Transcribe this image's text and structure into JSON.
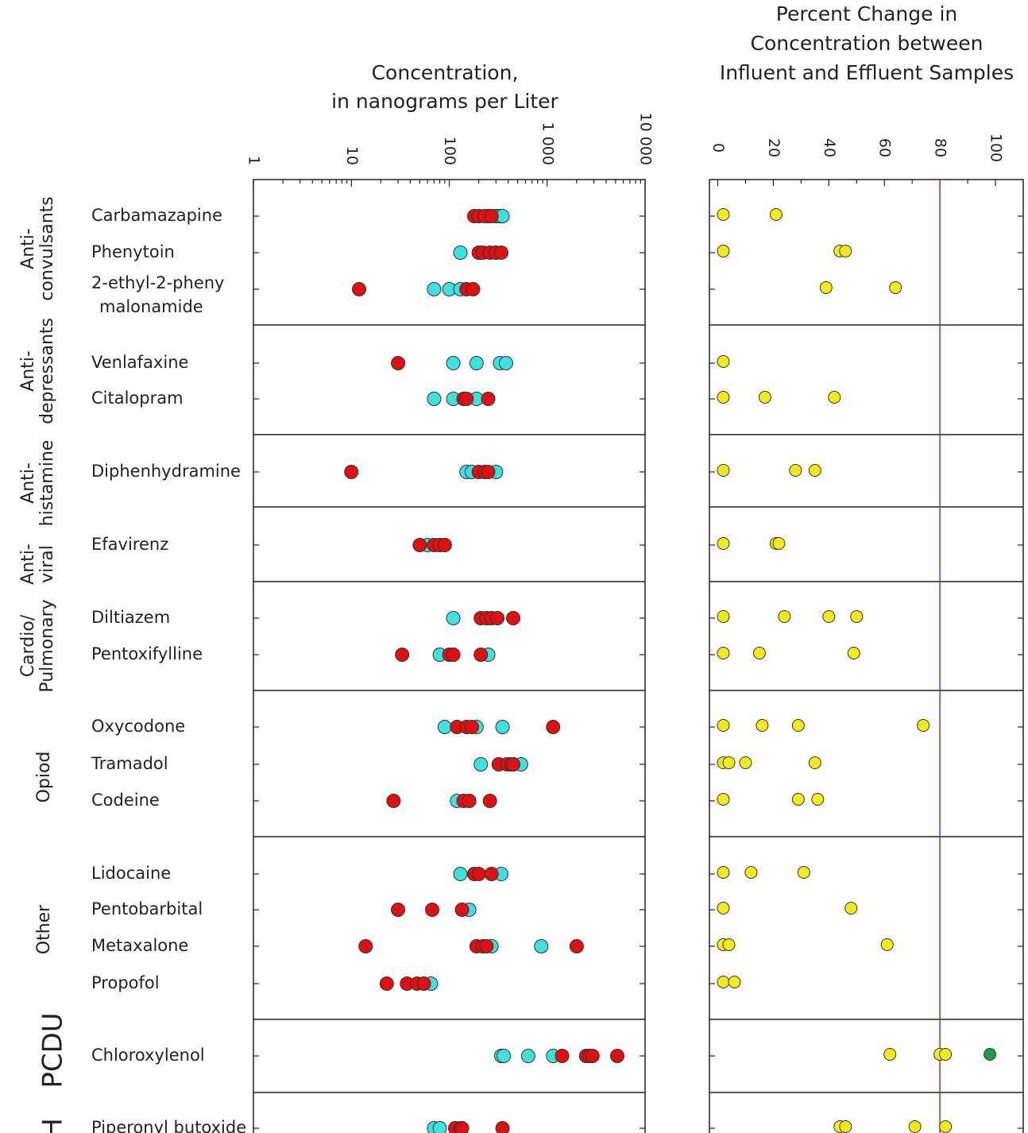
{
  "chart_data": [
    {
      "type": "scatter",
      "title": "Concentration,\nin nanograms per Liter",
      "xscale": "log",
      "xlim": [
        1,
        10000
      ],
      "tick_labels": [
        "1",
        "10",
        "100",
        "1 000",
        "10 000"
      ],
      "tick_values": [
        1,
        10,
        100,
        1000,
        10000
      ],
      "colors": {
        "cyan": "#3fe0e0",
        "red": "#dd1111"
      },
      "rows": [
        {
          "label": "Carbamazapine",
          "cyan": [
            250,
            300,
            330,
            350
          ],
          "red": [
            180,
            200,
            230,
            270
          ]
        },
        {
          "label": "Phenytoin",
          "cyan": [
            130
          ],
          "red": [
            200,
            220,
            260,
            300,
            340
          ]
        },
        {
          "label": "2-ethyl-2-pheny\nmalonamide",
          "cyan": [
            70,
            100,
            130
          ],
          "red": [
            12,
            150,
            175
          ]
        },
        {
          "label": "Venlafaxine",
          "cyan": [
            110,
            190,
            330,
            380
          ],
          "red": [
            30
          ]
        },
        {
          "label": "Citalopram",
          "cyan": [
            70,
            110,
            190
          ],
          "red": [
            140,
            150,
            250
          ]
        },
        {
          "label": "Diphenhydramine",
          "cyan": [
            150,
            170,
            300
          ],
          "red": [
            10,
            200,
            230,
            250
          ]
        },
        {
          "label": "Efavirenz",
          "cyan": [
            60
          ],
          "red": [
            50,
            70,
            80,
            90
          ]
        },
        {
          "label": "Diltiazem",
          "cyan": [
            110
          ],
          "red": [
            210,
            240,
            270,
            310,
            450
          ]
        },
        {
          "label": "Pentoxifylline",
          "cyan": [
            80,
            250
          ],
          "red": [
            33,
            100,
            110,
            210
          ]
        },
        {
          "label": "Oxycodone",
          "cyan": [
            90,
            190,
            350
          ],
          "red": [
            120,
            150,
            170,
            1150
          ]
        },
        {
          "label": "Tramadol",
          "cyan": [
            210,
            450,
            540
          ],
          "red": [
            320,
            390,
            430,
            450
          ]
        },
        {
          "label": "Codeine",
          "cyan": [
            120
          ],
          "red": [
            27,
            140,
            160,
            260
          ]
        },
        {
          "label": "Lidocaine",
          "cyan": [
            130,
            340
          ],
          "red": [
            180,
            200,
            270
          ]
        },
        {
          "label": "Pentobarbital",
          "cyan": [
            160
          ],
          "red": [
            30,
            67,
            135
          ]
        },
        {
          "label": "Metaxalone",
          "cyan": [
            270,
            870
          ],
          "red": [
            14,
            190,
            220,
            240,
            2000
          ]
        },
        {
          "label": "Propofol",
          "cyan": [
            65
          ],
          "red": [
            23,
            37,
            47,
            55
          ]
        },
        {
          "label": "Chloroxylenol",
          "cyan": [
            340,
            360,
            640,
            1150
          ],
          "red": [
            1420,
            2500,
            2700,
            2900,
            5200
          ]
        },
        {
          "label": "Piperonyl butoxide",
          "cyan": [
            70,
            80
          ],
          "red": [
            115,
            130,
            135,
            350
          ]
        }
      ]
    },
    {
      "type": "scatter",
      "title": "Percent Change in\nConcentration between\nInfluent and Effluent Samples",
      "xlim": [
        -3,
        110
      ],
      "tick_labels": [
        "0",
        "20",
        "40",
        "60",
        "80",
        "100"
      ],
      "tick_values": [
        0,
        20,
        40,
        60,
        80,
        100
      ],
      "reference_line": 80,
      "colors": {
        "yellow": "#f2ea1a",
        "green": "#1a9e4a",
        "reference": "#b83030"
      },
      "rows": [
        {
          "label": "Carbamazapine",
          "yellow": [
            2,
            21
          ]
        },
        {
          "label": "Phenytoin",
          "yellow": [
            2,
            44,
            46
          ]
        },
        {
          "label": "2-ethyl-2-pheny\nmalonamide",
          "yellow": [
            39,
            64
          ]
        },
        {
          "label": "Venlafaxine",
          "yellow": [
            2
          ]
        },
        {
          "label": "Citalopram",
          "yellow": [
            2,
            17,
            42
          ]
        },
        {
          "label": "Diphenhydramine",
          "yellow": [
            2,
            28,
            35
          ]
        },
        {
          "label": "Efavirenz",
          "yellow": [
            2,
            21,
            22
          ]
        },
        {
          "label": "Diltiazem",
          "yellow": [
            2,
            24,
            40,
            50
          ]
        },
        {
          "label": "Pentoxifylline",
          "yellow": [
            2,
            15,
            49
          ]
        },
        {
          "label": "Oxycodone",
          "yellow": [
            2,
            16,
            29,
            74
          ]
        },
        {
          "label": "Tramadol",
          "yellow": [
            2,
            4,
            10,
            35
          ]
        },
        {
          "label": "Codeine",
          "yellow": [
            2,
            29,
            36
          ]
        },
        {
          "label": "Lidocaine",
          "yellow": [
            2,
            12,
            31
          ]
        },
        {
          "label": "Pentobarbital",
          "yellow": [
            2,
            48
          ]
        },
        {
          "label": "Metaxalone",
          "yellow": [
            2,
            4,
            61
          ]
        },
        {
          "label": "Propofol",
          "yellow": [
            2,
            6
          ]
        },
        {
          "label": "Chloroxylenol",
          "yellow": [
            62,
            80,
            82
          ],
          "green": [
            98
          ]
        },
        {
          "label": "Piperonyl butoxide",
          "yellow": [
            44,
            46,
            71,
            82
          ]
        }
      ]
    }
  ],
  "groups": [
    {
      "line1": "Anti-",
      "line2": "convulsants"
    },
    {
      "line1": "Anti-",
      "line2": "depressants"
    },
    {
      "line1": "Anti-",
      "line2": "histamine"
    },
    {
      "line1": "Anti-",
      "line2": "viral"
    },
    {
      "line1": "Cardio/",
      "line2": "Pulmonary"
    },
    {
      "line1": "Opiod",
      "line2": ""
    },
    {
      "line1": "Other",
      "line2": ""
    },
    {
      "line1": "PCDU",
      "line2": ""
    },
    {
      "line1": "H",
      "line2": ""
    }
  ]
}
